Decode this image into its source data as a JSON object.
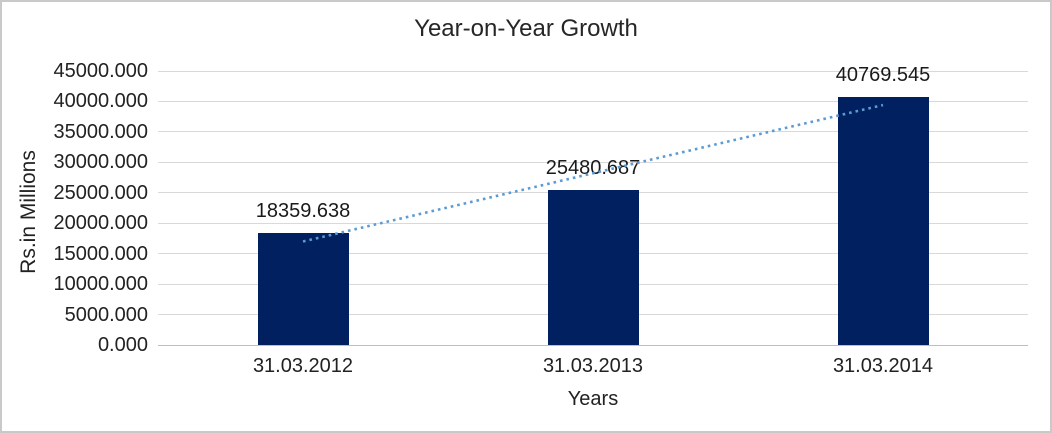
{
  "chart_data": {
    "type": "bar",
    "title": "Year-on-Year Growth",
    "xlabel": "Years",
    "ylabel": "Rs.in Millions",
    "categories": [
      "31.03.2012",
      "31.03.2013",
      "31.03.2014"
    ],
    "values": [
      18359.638,
      25480.687,
      40769.545
    ],
    "data_labels": [
      "18359.638",
      "25480.687",
      "40769.545"
    ],
    "series_name": "Rs.in Millions",
    "ylim": [
      0,
      45000
    ],
    "y_ticks": {
      "values": [
        45000,
        40000,
        35000,
        30000,
        25000,
        20000,
        15000,
        10000,
        5000,
        0
      ],
      "labels": [
        "45000.000",
        "40000.000",
        "35000.000",
        "30000.000",
        "25000.000",
        "20000.000",
        "15000.000",
        "10000.000",
        "5000.000",
        "0.000"
      ]
    },
    "grid": true,
    "legend": "none",
    "trendline": {
      "type": "linear",
      "style": "dotted",
      "start_value": 16998.3,
      "end_value": 39408.2
    },
    "colors": {
      "bar": "#002060",
      "trendline": "#5B9BD5",
      "gridline": "#D9D9D9",
      "axis_line": "#BFBFBF",
      "text": "#222222",
      "background": "#FFFFFF",
      "frame_border": "#C9C9C9"
    }
  }
}
